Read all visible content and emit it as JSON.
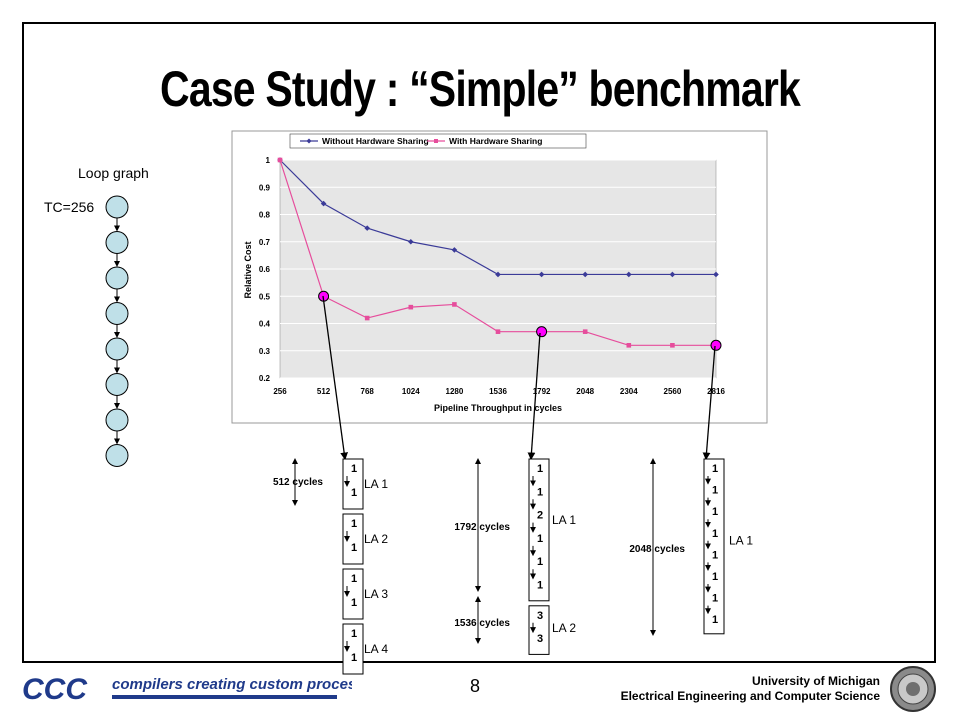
{
  "slide": {
    "title": "Case Study : “Simple” benchmark",
    "page_number": "8",
    "footer": {
      "logo_text": "CCC",
      "tagline": "compilers creating custom processors",
      "org_line1": "University of Michigan",
      "org_line2": "Electrical Engineering and Computer Science"
    }
  },
  "loop_graph": {
    "label": "Loop graph",
    "trip_count": "TC=256",
    "node_count": 8
  },
  "colors": {
    "without_sharing": "#3b3b98",
    "with_sharing": "#e64d9c",
    "highlight": "#ff00ff",
    "node_fill": "#bfe0e8"
  },
  "chart_data": {
    "type": "line",
    "title": "",
    "xlabel": "Pipeline Throughput in cycles",
    "ylabel": "Relative Cost",
    "x": [
      256,
      512,
      768,
      1024,
      1280,
      1536,
      1792,
      2048,
      2304,
      2560,
      2816
    ],
    "x_tick_labels": [
      "256",
      "512",
      "768",
      "1024",
      "1280",
      "1536",
      "1792",
      "2048",
      "2304",
      "2560",
      "2816"
    ],
    "y_tick_labels": [
      "0.2",
      "0.3",
      "0.4",
      "0.5",
      "0.6",
      "0.7",
      "0.8",
      "0.9",
      "1"
    ],
    "ylim": [
      0.2,
      1
    ],
    "grid": "horizontal",
    "legend_position": "top",
    "series": [
      {
        "name": "Without Hardware Sharing",
        "marker": "diamond",
        "values": [
          1.0,
          0.84,
          0.75,
          0.7,
          0.67,
          0.58,
          0.58,
          0.58,
          0.58,
          0.58,
          0.58
        ]
      },
      {
        "name": "With Hardware Sharing",
        "marker": "square",
        "values": [
          1.0,
          0.5,
          0.42,
          0.46,
          0.47,
          0.37,
          0.37,
          0.37,
          0.32,
          0.32,
          0.32
        ]
      }
    ],
    "highlighted_points": [
      {
        "x": 512,
        "y": 0.5
      },
      {
        "x": 1792,
        "y": 0.37
      },
      {
        "x": 2816,
        "y": 0.32
      }
    ]
  },
  "schedules": [
    {
      "id": "schedule-512",
      "span_label": "512 cycles",
      "groups": [
        {
          "label": "LA 1",
          "values": [
            "1",
            "1"
          ]
        },
        {
          "label": "LA 2",
          "values": [
            "1",
            "1"
          ]
        },
        {
          "label": "LA 3",
          "values": [
            "1",
            "1"
          ]
        },
        {
          "label": "LA 4",
          "values": [
            "1",
            "1"
          ]
        }
      ]
    },
    {
      "id": "schedule-1792",
      "span_labels": [
        "1792 cycles",
        "1536 cycles"
      ],
      "groups": [
        {
          "label": "LA 1",
          "values": [
            "1",
            "1",
            "2",
            "1",
            "1",
            "1"
          ]
        },
        {
          "label": "LA 2",
          "values": [
            "3",
            "3"
          ]
        }
      ]
    },
    {
      "id": "schedule-2816",
      "span_label": "2048 cycles",
      "groups": [
        {
          "label": "LA 1",
          "values": [
            "1",
            "1",
            "1",
            "1",
            "1",
            "1",
            "1",
            "1"
          ]
        }
      ]
    }
  ]
}
